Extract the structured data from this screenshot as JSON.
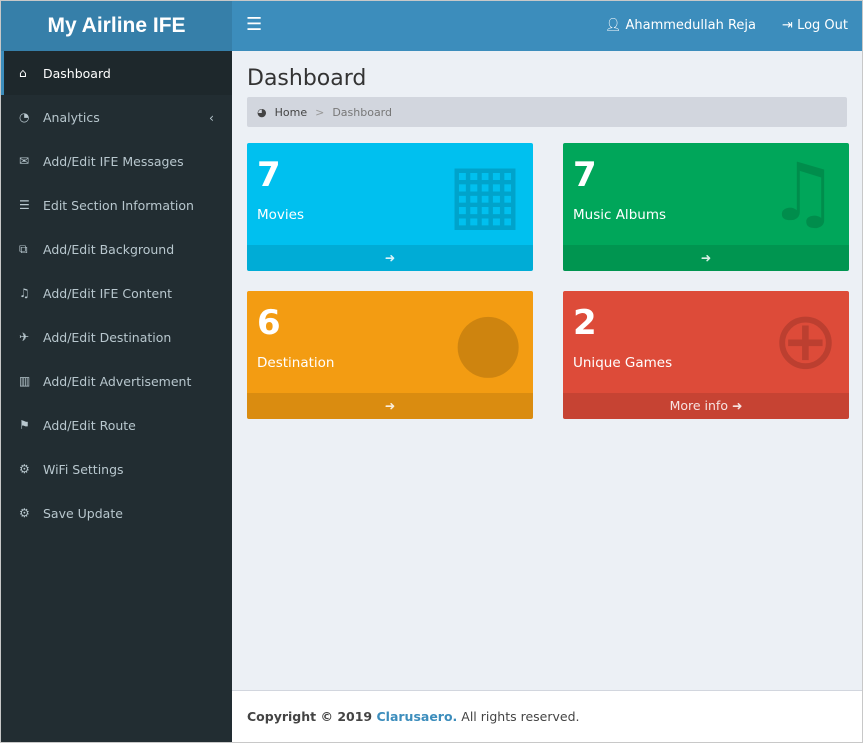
{
  "app": {
    "title": "My Airline IFE"
  },
  "header": {
    "user": "Ahammedullah Reja",
    "logout": "Log Out"
  },
  "sidebar": {
    "items": [
      {
        "label": "Dashboard",
        "icon": "home-icon",
        "glyph": "⌂"
      },
      {
        "label": "Analytics",
        "icon": "pie-chart-icon",
        "glyph": "◔"
      },
      {
        "label": "Add/Edit IFE Messages",
        "icon": "envelope-icon",
        "glyph": "✉"
      },
      {
        "label": "Edit Section Information",
        "icon": "list-icon",
        "glyph": "☰"
      },
      {
        "label": "Add/Edit Background",
        "icon": "external-link-icon",
        "glyph": "⧉"
      },
      {
        "label": "Add/Edit IFE Content",
        "icon": "music-icon",
        "glyph": "♫"
      },
      {
        "label": "Add/Edit Destination",
        "icon": "plane-icon",
        "glyph": "✈"
      },
      {
        "label": "Add/Edit Advertisement",
        "icon": "map-icon",
        "glyph": "▥"
      },
      {
        "label": "Add/Edit Route",
        "icon": "signpost-icon",
        "glyph": "⚑"
      },
      {
        "label": "WiFi Settings",
        "icon": "gear-icon",
        "glyph": "⚙"
      },
      {
        "label": "Save Update",
        "icon": "gear-icon",
        "glyph": "⚙"
      }
    ]
  },
  "page": {
    "title": "Dashboard",
    "breadcrumb": {
      "home": "Home",
      "sep": ">",
      "current": "Dashboard"
    }
  },
  "boxes": [
    {
      "value": "7",
      "label": "Movies",
      "icon": "film-icon",
      "color": "#00c0ef",
      "footer": ""
    },
    {
      "value": "7",
      "label": "Music Albums",
      "icon": "music-icon",
      "color": "#00a65a",
      "footer": ""
    },
    {
      "value": "6",
      "label": "Destination",
      "icon": "globe-icon",
      "color": "#f39c12",
      "footer": ""
    },
    {
      "value": "2",
      "label": "Unique Games",
      "icon": "gamepad-icon",
      "color": "#dd4b39",
      "footer": "More info"
    }
  ],
  "footer": {
    "prefix": "Copyright © 2019 ",
    "company": "Clarusaero.",
    "suffix": " All rights reserved."
  }
}
